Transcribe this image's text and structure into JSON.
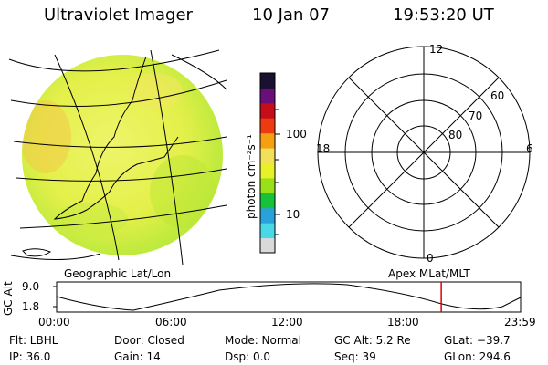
{
  "header": {
    "title": "Ultraviolet Imager",
    "date": "10 Jan 07",
    "time": "19:53:20 UT"
  },
  "colorbar": {
    "label": "photon cm⁻²s⁻¹",
    "ticks": [
      "100",
      "10"
    ],
    "colors": [
      "#d9d9d9",
      "#4ad8e6",
      "#2aa1d8",
      "#16c23a",
      "#9ae018",
      "#e8f02a",
      "#f2e05a",
      "#f5a012",
      "#ee3a10",
      "#c60e1a",
      "#6a0f7a",
      "#1a1030"
    ]
  },
  "map_labels": {
    "left": "Geographic Lat/Lon",
    "right": "Apex MLat/MLT"
  },
  "polar": {
    "mlt_labels": {
      "top": "12",
      "left": "18",
      "right": "6",
      "bottom": "0"
    },
    "lat_labels": [
      "60",
      "70",
      "80"
    ]
  },
  "timeline": {
    "ylabel": "GC Alt",
    "ymax": "9.0",
    "ymin": "1.8",
    "xticks": [
      "00:00",
      "06:00",
      "12:00",
      "18:00",
      "23:59"
    ],
    "current_time_fraction": 0.829,
    "marker_color": "#e00000"
  },
  "info": {
    "filter": "Flt: LBHL",
    "ip": "IP: 36.0",
    "door": "Door: Closed",
    "gain": "Gain: 14",
    "mode": "Mode: Normal",
    "dsp": "Dsp:     0.0",
    "gc_alt": "GC Alt: 5.2 Re",
    "seq": "Seq: 39",
    "glat": "GLat: −39.7",
    "glon": "GLon: 294.6"
  }
}
